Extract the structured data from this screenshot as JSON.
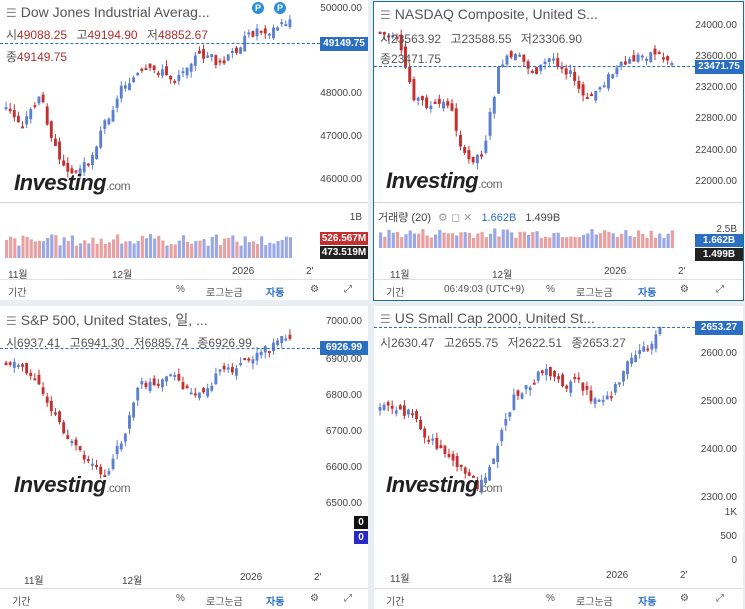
{
  "panels": [
    {
      "title": "Dow Jones Industrial Averag...",
      "ohlc": {
        "o_label": "시",
        "o": "49088.25",
        "h_label": "고",
        "h": "49194.90",
        "l_label": "저",
        "l": "48852.67",
        "c_label": "종",
        "c": "49149.75"
      },
      "current_tag": "49149.75",
      "price_ticks": [
        "50000.00",
        "48000.00",
        "47000.00",
        "46000.00"
      ],
      "volume": {
        "scale": "1B",
        "tag1": "526.567M",
        "tag2": "473.519M"
      },
      "dates": [
        "11월",
        "12월",
        "2026",
        "2'"
      ],
      "markers": [
        "P",
        "P"
      ],
      "bottom": {
        "period": "기간",
        "pct": "%",
        "log": "로그눈금",
        "auto": "자동"
      }
    },
    {
      "title": "NASDAQ Composite, United S...",
      "ohlc": {
        "o_label": "시",
        "o": "23563.92",
        "h_label": "고",
        "h": "23588.55",
        "l_label": "저",
        "l": "23306.90",
        "c_label": "종",
        "c": "23471.75"
      },
      "current_tag": "23471.75",
      "price_ticks": [
        "24000.00",
        "23600.00",
        "23200.00",
        "22800.00",
        "22400.00",
        "22000.00"
      ],
      "volume": {
        "label": "거래량 (20)",
        "v1": "1.662B",
        "v2": "1.499B",
        "scale": "2.5B",
        "tag1": "1.662B",
        "tag2": "1.499B"
      },
      "dates": [
        "11월",
        "12월",
        "2026",
        "2'"
      ],
      "bottom": {
        "period": "기간",
        "time": "06:49:03 (UTC+9)",
        "pct": "%",
        "log": "로그눈금",
        "auto": "자동"
      }
    },
    {
      "title": "S&P 500, United States, 일, ...",
      "ohlc": {
        "o_label": "시",
        "o": "6937.41",
        "h_label": "고",
        "h": "6941.30",
        "l_label": "저",
        "l": "6885.74",
        "c_label": "종",
        "c": "6926.99"
      },
      "current_tag": "6926.99",
      "price_ticks": [
        "7000.00",
        "6900.00",
        "6800.00",
        "6700.00",
        "6600.00",
        "6500.00"
      ],
      "volume": {
        "tag1": "0",
        "tag2": "0"
      },
      "dates": [
        "11월",
        "12월",
        "2026",
        "2'"
      ],
      "bottom": {
        "period": "기간",
        "pct": "%",
        "log": "로그눈금",
        "auto": "자동"
      }
    },
    {
      "title": "US Small Cap 2000, United St...",
      "ohlc": {
        "o_label": "시",
        "o": "2630.47",
        "h_label": "고",
        "h": "2655.75",
        "l_label": "저",
        "l": "2622.51",
        "c_label": "종",
        "c": "2653.27"
      },
      "current_tag": "2653.27",
      "price_ticks": [
        "2600.00",
        "2500.00",
        "2400.00",
        "2300.00",
        "1K",
        "500",
        "0"
      ],
      "dates": [
        "11월",
        "12월",
        "2026",
        "2'"
      ],
      "bottom": {
        "period": "기간",
        "pct": "%",
        "log": "로그눈금",
        "auto": "자동"
      }
    }
  ],
  "logo": {
    "main": "Investing",
    "suffix": ".com"
  },
  "colors": {
    "up": "#5b7fd1",
    "down": "#c43030",
    "accent": "#2a6fc2"
  }
}
